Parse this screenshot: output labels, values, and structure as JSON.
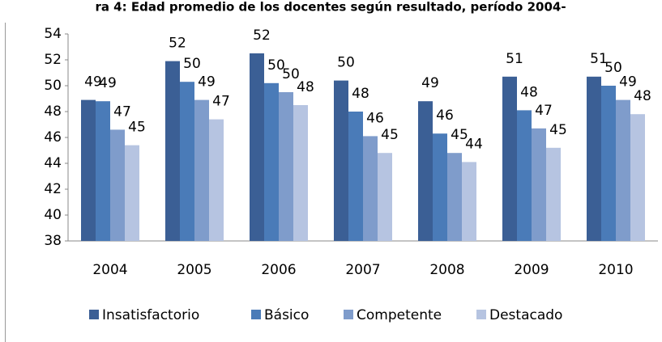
{
  "chart_data": {
    "type": "bar",
    "title": "ra 4: Edad promedio de los docentes según resultado, período 2004-",
    "categories": [
      "2004",
      "2005",
      "2006",
      "2007",
      "2008",
      "2009",
      "2010"
    ],
    "series": [
      {
        "name": "Insatisfactorio",
        "color": "#3b5f95",
        "values": [
          48.9,
          51.9,
          52.5,
          50.4,
          48.8,
          50.7,
          50.7
        ],
        "value_labels": [
          "49",
          "52",
          "52",
          "50",
          "49",
          "51",
          "51"
        ]
      },
      {
        "name": "Básico",
        "color": "#4a7bb8",
        "values": [
          48.8,
          50.3,
          50.2,
          48.0,
          46.3,
          48.1,
          50.0
        ],
        "value_labels": [
          "49",
          "50",
          "50",
          "48",
          "46",
          "48",
          "50"
        ]
      },
      {
        "name": "Competente",
        "color": "#7f9ccb",
        "values": [
          46.6,
          48.9,
          49.5,
          46.1,
          44.8,
          46.7,
          48.9
        ],
        "value_labels": [
          "47",
          "49",
          "50",
          "46",
          "45",
          "47",
          "49"
        ]
      },
      {
        "name": "Destacado",
        "color": "#b6c4e1",
        "values": [
          45.4,
          47.4,
          48.5,
          44.8,
          44.1,
          45.2,
          47.8
        ],
        "value_labels": [
          "45",
          "47",
          "48",
          "45",
          "44",
          "45",
          "48"
        ]
      }
    ],
    "ylim": [
      38,
      54
    ],
    "yticks": [
      38,
      40,
      42,
      44,
      46,
      48,
      50,
      52,
      54
    ],
    "legend": "bottom"
  }
}
